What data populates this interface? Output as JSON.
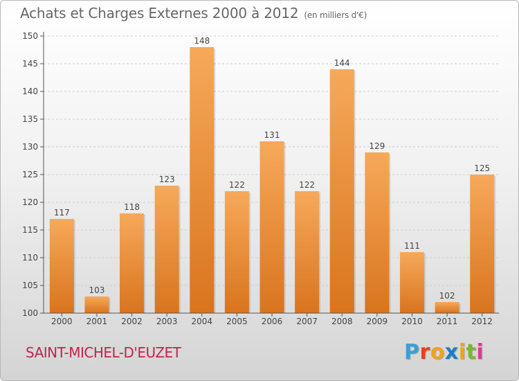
{
  "header": {
    "title": "Achats et Charges Externes 2000 à 2012",
    "unit": "(en milliers d'€)"
  },
  "footer": {
    "commune": "SAINT-MICHEL-D'EUZET",
    "logo_letters": [
      "P",
      "r",
      "o",
      "x",
      "i",
      "t",
      "i"
    ],
    "logo_colors": [
      "#3aa0d8",
      "#e8401c",
      "#f2a21c",
      "#1a7fc4",
      "#f2a21c",
      "#7ab82a",
      "#e23a8a"
    ]
  },
  "colors": {
    "bar_light": "#f6a95a",
    "bar_dark": "#d9741e",
    "axis": "#555555",
    "grid": "#cfcfcf",
    "text": "#444444"
  },
  "chart_data": {
    "type": "bar",
    "title": "Achats et Charges Externes 2000 à 2012",
    "subtitle": "(en milliers d'€)",
    "xlabel": "",
    "ylabel": "",
    "categories": [
      "2000",
      "2001",
      "2002",
      "2003",
      "2004",
      "2005",
      "2006",
      "2007",
      "2008",
      "2009",
      "2010",
      "2011",
      "2012"
    ],
    "values": [
      117,
      103,
      118,
      123,
      148,
      122,
      131,
      122,
      144,
      129,
      111,
      102,
      125
    ],
    "ylim": [
      100,
      150
    ],
    "yticks": [
      100,
      105,
      110,
      115,
      120,
      125,
      130,
      135,
      140,
      145,
      150
    ],
    "grid": true
  }
}
